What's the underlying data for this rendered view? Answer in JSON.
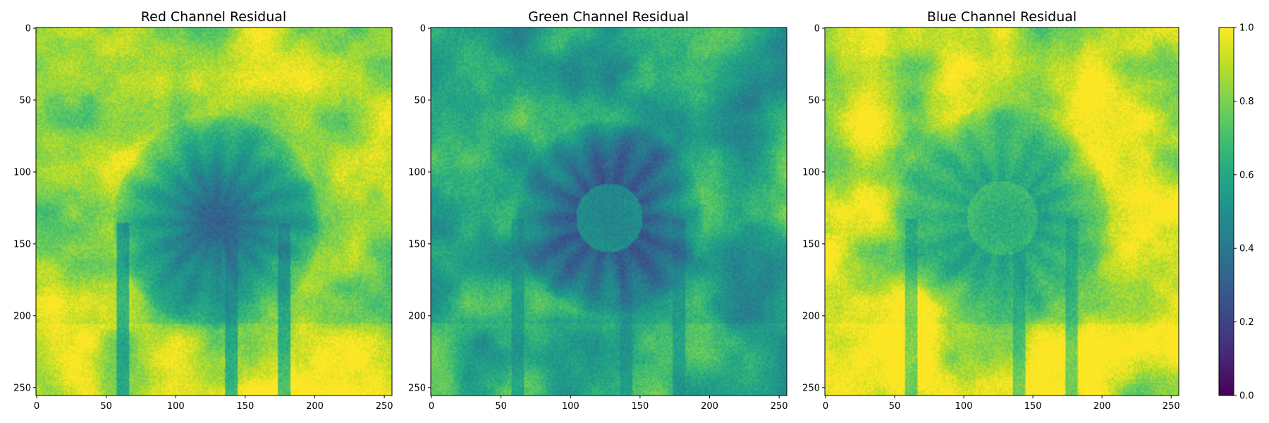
{
  "chart_data": [
    {
      "type": "heatmap",
      "title": "Red Channel Residual",
      "x_ticks": [
        0,
        50,
        100,
        150,
        200,
        250
      ],
      "y_ticks": [
        0,
        50,
        100,
        150,
        200,
        250
      ],
      "xlim": [
        0,
        255
      ],
      "ylim": [
        255,
        0
      ],
      "image_size": [
        256,
        256
      ],
      "colormap": "viridis",
      "description_values": {
        "background_level": 0.85,
        "flower_center_level": 0.3,
        "flower_center": [
          130,
          135
        ],
        "flower_radius": 75,
        "petal_count": 16,
        "petal_contrast": 0.1,
        "center_disk_radius": 0,
        "stem_level": 0.4
      }
    },
    {
      "type": "heatmap",
      "title": "Green Channel Residual",
      "x_ticks": [
        0,
        50,
        100,
        150,
        200,
        250
      ],
      "y_ticks": [
        0,
        50,
        100,
        150,
        200,
        250
      ],
      "xlim": [
        0,
        255
      ],
      "ylim": [
        255,
        0
      ],
      "image_size": [
        256,
        256
      ],
      "colormap": "viridis",
      "description_values": {
        "background_level": 0.6,
        "flower_center_level": 0.2,
        "flower_center": [
          128,
          132
        ],
        "flower_radius": 68,
        "petal_count": 14,
        "petal_contrast": 0.14,
        "center_disk_radius": 24,
        "center_disk_level": 0.45,
        "stem_level": 0.45
      }
    },
    {
      "type": "heatmap",
      "title": "Blue Channel Residual",
      "x_ticks": [
        0,
        50,
        100,
        150,
        200,
        250
      ],
      "y_ticks": [
        0,
        50,
        100,
        150,
        200,
        250
      ],
      "xlim": [
        0,
        255
      ],
      "ylim": [
        255,
        0
      ],
      "image_size": [
        256,
        256
      ],
      "colormap": "viridis",
      "description_values": {
        "background_level": 0.88,
        "flower_center_level": 0.5,
        "flower_center": [
          128,
          132
        ],
        "flower_radius": 78,
        "petal_count": 16,
        "petal_contrast": 0.08,
        "center_disk_radius": 26,
        "center_disk_level": 0.62,
        "stem_level": 0.55
      }
    }
  ],
  "colorbar": {
    "colormap": "viridis",
    "range": [
      0.0,
      1.0
    ],
    "ticks": [
      0.0,
      0.2,
      0.4,
      0.6,
      0.8,
      1.0
    ],
    "tick_labels": [
      "0.0",
      "0.2",
      "0.4",
      "0.6",
      "0.8",
      "1.0"
    ]
  }
}
